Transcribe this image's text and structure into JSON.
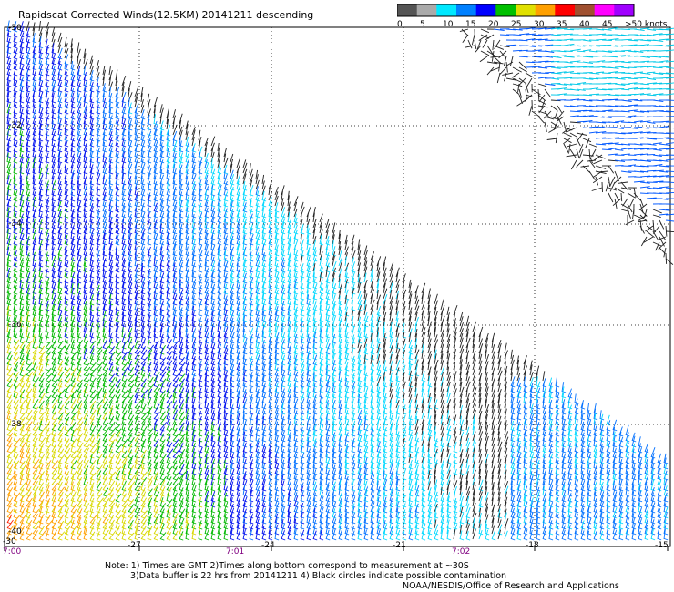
{
  "title": "Rapidscat Corrected Winds(12.5KM) 20141211 descending",
  "legend": {
    "ticks": [
      "0",
      "5",
      "10",
      "15",
      "20",
      "25",
      "30",
      "35",
      "40",
      "45",
      ">50 knots"
    ],
    "colors": [
      "#555555",
      "#aaaaaa",
      "#00e8ff",
      "#0080ff",
      "#0000ff",
      "#00c000",
      "#e0e000",
      "#ffa000",
      "#ff0000",
      "#a05030",
      "#ff00ff",
      "#a000ff"
    ]
  },
  "lat_labels": [
    "-30",
    "-32",
    "-34",
    "-36",
    "-38",
    "-40"
  ],
  "bottom_axis": {
    "left_corner": "-30",
    "left_time": "7:00",
    "lon_labels": [
      "-27",
      "-24",
      "-21",
      "-18",
      "-15"
    ],
    "time_labels": [
      "7:01",
      "7:02"
    ]
  },
  "notes": {
    "line1": "Note: 1) Times are GMT 2)Times along bottom correspond to measurement at ~30S",
    "line2": "3)Data buffer is 22 hrs from 20141211 4) Black circles indicate possible contamination",
    "credit": "NOAA/NESDIS/Office of Research and Applications"
  }
}
